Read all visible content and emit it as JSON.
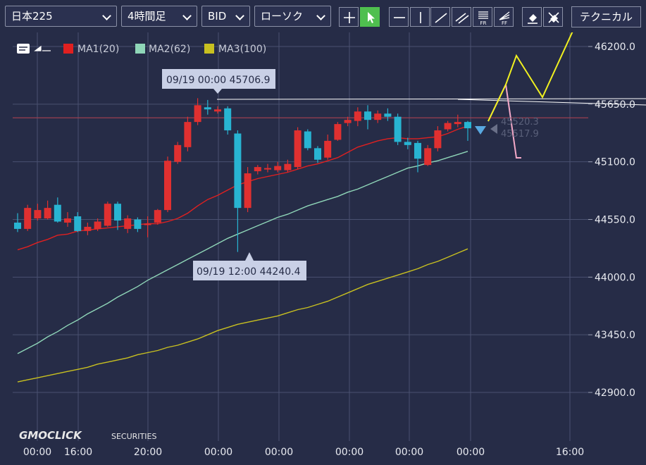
{
  "toolbar": {
    "symbol": "日本225",
    "timeframe": "4時間足",
    "price_side": "BID",
    "chart_style": "ローソク",
    "technical_label": "テクニカル",
    "tools": [
      "crosshair-icon",
      "pointer-icon",
      "horizontal-line-icon",
      "vertical-line-icon",
      "trend-line-icon",
      "channel-line-icon",
      "fibonacci-retracement-icon",
      "fibonacci-fan-icon",
      "eraser-icon",
      "clear-drawings-icon"
    ]
  },
  "legend": [
    {
      "name": "MA1(20)",
      "color": "#e02020"
    },
    {
      "name": "MA2(62)",
      "color": "#8fd6b8"
    },
    {
      "name": "MA3(100)",
      "color": "#c8c020"
    }
  ],
  "brand": "GMOCLICK",
  "brand_suffix": "SECURITIES",
  "annotations": {
    "high": "09/19 00:00 45706.9",
    "low": "09/19 12:00 44240.4",
    "ask_price": "45520.3",
    "bid_price": "45517.9"
  },
  "colors": {
    "background": "#262c47",
    "grid": "#4a5170",
    "up": "#e03030",
    "down": "#28b4d2",
    "projection_up": "#f0f020",
    "projection_down": "#f4a9c8"
  },
  "chart_data": {
    "type": "candlestick",
    "ylim": [
      42700,
      46380
    ],
    "y_ticks": [
      42900,
      43450,
      44000,
      44550,
      45100,
      45650,
      46200
    ],
    "y_tick_labels": [
      "42900.0",
      "43450.0",
      "44000.0",
      "44550.0",
      "45100.0",
      "45650.0",
      "46200.0"
    ],
    "x_tick_labels": [
      "00:00",
      "16:00",
      "20:00",
      "00:00",
      "00:00",
      "00:00",
      "00:00",
      "00:00",
      "16:00"
    ],
    "horizontal_line": 45520,
    "candles": [
      [
        44520,
        44460,
        44610,
        44430
      ],
      [
        44460,
        44660,
        44690,
        44440
      ],
      [
        44560,
        44640,
        44700,
        44540
      ],
      [
        44560,
        44660,
        44730,
        44550
      ],
      [
        44690,
        44530,
        44760,
        44520
      ],
      [
        44520,
        44560,
        44620,
        44480
      ],
      [
        44580,
        44440,
        44620,
        44430
      ],
      [
        44440,
        44480,
        44520,
        44400
      ],
      [
        44460,
        44530,
        44560,
        44440
      ],
      [
        44490,
        44700,
        44720,
        44480
      ],
      [
        44700,
        44540,
        44720,
        44450
      ],
      [
        44460,
        44560,
        44590,
        44420
      ],
      [
        44550,
        44460,
        44570,
        44430
      ],
      [
        44510,
        44510,
        44580,
        44380
      ],
      [
        44520,
        44640,
        44650,
        44500
      ],
      [
        44640,
        45110,
        45150,
        44620
      ],
      [
        45100,
        45260,
        45290,
        45080
      ],
      [
        45240,
        45480,
        45530,
        45200
      ],
      [
        45480,
        45640,
        45707,
        45450
      ],
      [
        45620,
        45600,
        45690,
        45550
      ],
      [
        45580,
        45600,
        45630,
        45560
      ],
      [
        45610,
        45400,
        45630,
        45360
      ],
      [
        45370,
        44660,
        45400,
        44240
      ],
      [
        44660,
        44990,
        45050,
        44620
      ],
      [
        45010,
        45050,
        45070,
        44980
      ],
      [
        45030,
        45040,
        45080,
        45000
      ],
      [
        45020,
        45060,
        45100,
        45000
      ],
      [
        45020,
        45080,
        45120,
        45000
      ],
      [
        45050,
        45400,
        45430,
        45030
      ],
      [
        45390,
        45230,
        45410,
        45210
      ],
      [
        45230,
        45120,
        45250,
        45090
      ],
      [
        45140,
        45300,
        45360,
        45120
      ],
      [
        45310,
        45460,
        45480,
        45300
      ],
      [
        45470,
        45500,
        45530,
        45440
      ],
      [
        45490,
        45580,
        45620,
        45440
      ],
      [
        45580,
        45500,
        45640,
        45410
      ],
      [
        45500,
        45560,
        45590,
        45470
      ],
      [
        45560,
        45530,
        45610,
        45490
      ],
      [
        45530,
        45290,
        45560,
        45260
      ],
      [
        45290,
        45260,
        45330,
        45220
      ],
      [
        45280,
        45130,
        45300,
        45000
      ],
      [
        45070,
        45230,
        45260,
        45060
      ],
      [
        45230,
        45400,
        45440,
        45200
      ],
      [
        45410,
        45470,
        45490,
        45390
      ],
      [
        45460,
        45480,
        45550,
        45430
      ],
      [
        45480,
        45420,
        45490,
        45300
      ]
    ],
    "series": [
      {
        "name": "MA1(20)",
        "values": [
          44260,
          44290,
          44330,
          44360,
          44400,
          44410,
          44440,
          44450,
          44460,
          44470,
          44480,
          44490,
          44500,
          44510,
          44510,
          44530,
          44560,
          44610,
          44680,
          44740,
          44780,
          44830,
          44880,
          44910,
          44940,
          44960,
          44980,
          45000,
          45030,
          45060,
          45080,
          45110,
          45140,
          45190,
          45240,
          45270,
          45300,
          45320,
          45330,
          45320,
          45320,
          45330,
          45340,
          45370,
          45410,
          45440
        ]
      },
      {
        "name": "MA2(62)",
        "values": [
          43270,
          43320,
          43370,
          43430,
          43480,
          43540,
          43590,
          43650,
          43700,
          43750,
          43810,
          43860,
          43910,
          43970,
          44020,
          44070,
          44120,
          44170,
          44220,
          44270,
          44320,
          44370,
          44410,
          44450,
          44490,
          44530,
          44570,
          44600,
          44640,
          44680,
          44710,
          44740,
          44770,
          44810,
          44840,
          44880,
          44920,
          44960,
          45000,
          45040,
          45060,
          45090,
          45110,
          45140,
          45170,
          45200
        ]
      },
      {
        "name": "MA3(100)",
        "values": [
          43000,
          43020,
          43040,
          43060,
          43080,
          43100,
          43120,
          43140,
          43170,
          43190,
          43210,
          43230,
          43260,
          43280,
          43300,
          43330,
          43350,
          43380,
          43410,
          43450,
          43490,
          43520,
          43550,
          43570,
          43590,
          43610,
          43630,
          43660,
          43690,
          43710,
          43740,
          43770,
          43810,
          43850,
          43890,
          43930,
          43960,
          43990,
          44020,
          44050,
          44080,
          44120,
          44150,
          44190,
          44230,
          44270
        ]
      }
    ]
  }
}
